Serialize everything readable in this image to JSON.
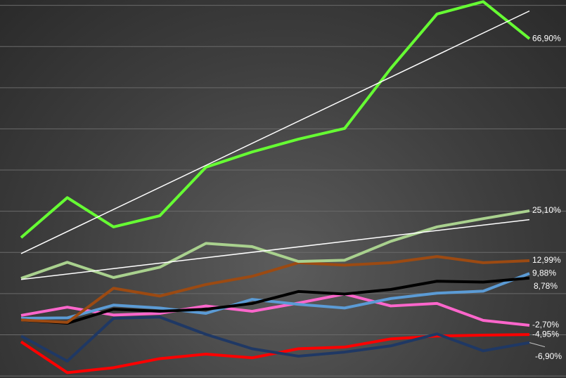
{
  "chart_data": {
    "type": "line",
    "categories": [
      null,
      null,
      null,
      null,
      null,
      null,
      null,
      null,
      null,
      null,
      null,
      null
    ],
    "ylim": [
      -15.5,
      76.3
    ],
    "yticks": [
      -15,
      -5,
      5,
      15,
      25,
      35,
      45,
      55,
      65,
      75
    ],
    "grid": true,
    "series": [
      {
        "color": "#66ff33",
        "trendline": true,
        "values": [
          18.6,
          28.3,
          21.2,
          23.9,
          35.7,
          39.4,
          42.5,
          45.1,
          59.7,
          72.9,
          75.9,
          66.9
        ],
        "value_labels": [
          null,
          null,
          null,
          null,
          null,
          null,
          null,
          null,
          null,
          null,
          null,
          "66,90%"
        ]
      },
      {
        "color": "#a9d18e",
        "trendline": true,
        "values": [
          8.7,
          12.6,
          8.9,
          11.4,
          17.2,
          16.4,
          12.8,
          13.1,
          17.7,
          21.2,
          23.2,
          25.1
        ],
        "value_labels": [
          null,
          null,
          null,
          null,
          null,
          null,
          null,
          null,
          null,
          null,
          null,
          "25,10%"
        ]
      },
      {
        "color": "#9c4a12",
        "values": [
          -1.4,
          -2.0,
          6.3,
          4.4,
          7.2,
          9.2,
          12.5,
          11.9,
          12.5,
          14.0,
          12.5,
          12.99
        ],
        "value_labels": [
          null,
          null,
          null,
          null,
          null,
          null,
          null,
          null,
          null,
          null,
          null,
          "12,99%"
        ]
      },
      {
        "color": "#000000",
        "values": [
          -1.4,
          -2.2,
          1.2,
          0.7,
          1.2,
          2.6,
          5.5,
          4.9,
          6.0,
          8.0,
          7.8,
          8.78
        ],
        "value_labels": [
          null,
          null,
          null,
          null,
          null,
          null,
          null,
          null,
          null,
          null,
          null,
          "8,78%"
        ]
      },
      {
        "color": "#5b9bd5",
        "values": [
          -1.0,
          -0.9,
          2.2,
          1.5,
          0.2,
          3.6,
          2.4,
          1.5,
          3.8,
          5.1,
          5.6,
          9.88
        ],
        "value_labels": [
          null,
          null,
          null,
          null,
          null,
          null,
          null,
          null,
          null,
          null,
          null,
          "9,88%"
        ]
      },
      {
        "color": "#ff66cc",
        "values": [
          -0.3,
          1.7,
          -0.2,
          0.2,
          2.0,
          0.7,
          2.7,
          4.9,
          2.0,
          2.6,
          -1.5,
          -2.7
        ],
        "value_labels": [
          null,
          null,
          null,
          null,
          null,
          null,
          null,
          null,
          null,
          null,
          null,
          "-2,70%"
        ]
      },
      {
        "color": "#1f3864",
        "values": [
          -5.3,
          -11.4,
          -1.0,
          -0.7,
          -4.9,
          -8.4,
          -10.2,
          -9.2,
          -7.7,
          -4.8,
          -8.9,
          -6.9
        ],
        "value_labels": [
          null,
          null,
          null,
          null,
          null,
          null,
          null,
          null,
          null,
          null,
          null,
          "-6,90%"
        ]
      },
      {
        "color": "#ff0000",
        "values": [
          -6.7,
          -14.2,
          -13.0,
          -10.8,
          -9.7,
          -10.6,
          -8.4,
          -8.0,
          -6.0,
          -5.3,
          -5.1,
          -4.95
        ],
        "value_labels": [
          null,
          null,
          null,
          null,
          null,
          null,
          null,
          null,
          null,
          null,
          null,
          "-4,95%"
        ]
      }
    ]
  }
}
